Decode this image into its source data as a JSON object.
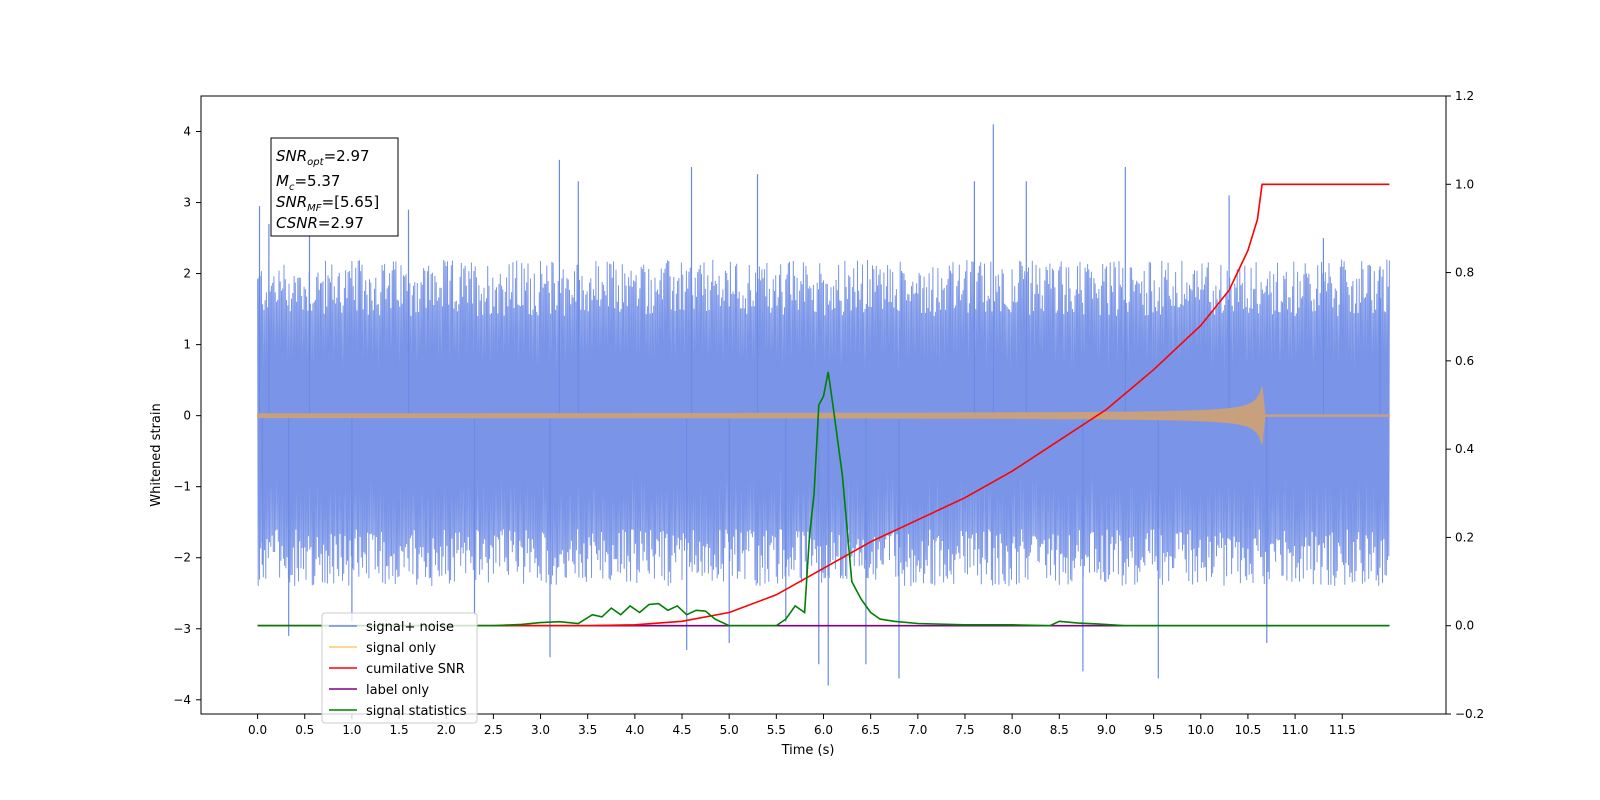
{
  "chart_data": {
    "type": "line",
    "xlabel": "Time (s)",
    "ylabel": "Whitened strain",
    "xlim": [
      -0.6,
      12.6
    ],
    "ylim_left": [
      -4.2,
      4.5
    ],
    "ylim_right": [
      -0.2,
      1.2
    ],
    "x_ticks": [
      0.0,
      0.5,
      1.0,
      1.5,
      2.0,
      2.5,
      3.0,
      3.5,
      4.0,
      4.5,
      5.0,
      5.5,
      6.0,
      6.5,
      7.0,
      7.5,
      8.0,
      8.5,
      9.0,
      9.5,
      10.0,
      10.5,
      11.0,
      11.5
    ],
    "x_tick_labels": [
      "0.0",
      "0.5",
      "1.0",
      "1.5",
      "2.0",
      "2.5",
      "3.0",
      "3.5",
      "4.0",
      "4.5",
      "5.0",
      "5.5",
      "6.0",
      "6.5",
      "7.0",
      "7.5",
      "8.0",
      "8.5",
      "9.0",
      "9.5",
      "10.0",
      "10.5",
      "11.0",
      "11.5"
    ],
    "y_left_ticks": [
      4,
      3,
      2,
      1,
      0,
      -1,
      -2,
      -3,
      -4
    ],
    "y_left_tick_labels": [
      "4",
      "3",
      "2",
      "1",
      "0",
      "−1",
      "−2",
      "−3",
      "−4"
    ],
    "y_right_ticks": [
      1.2,
      1.0,
      0.8,
      0.6,
      0.4,
      0.2,
      0.0,
      -0.2
    ],
    "y_right_tick_labels": [
      "1.2",
      "1.0",
      "0.8",
      "0.6",
      "0.4",
      "0.2",
      "0.0",
      "−0.2"
    ],
    "grid": false,
    "legend_position": "lower-left",
    "annotation": {
      "lines": [
        {
          "name": "SNR",
          "sub": "opt",
          "value": "=2.97"
        },
        {
          "name": "M",
          "sub": "c",
          "value": "=5.37"
        },
        {
          "name": "SNR",
          "sub": "MF",
          "value": "=[5.65]"
        },
        {
          "name": "CSNR",
          "sub": "",
          "value": "=2.97"
        }
      ]
    },
    "series": [
      {
        "name": "signal+ noise",
        "color": "#6b8ae5",
        "axis": "left",
        "style": "noise band",
        "x_range": [
          0.0,
          12.0
        ],
        "typical_range": [
          -1.6,
          1.4
        ],
        "spikes": [
          [
            0.02,
            2.95
          ],
          [
            0.05,
            -2.1
          ],
          [
            0.12,
            2.7
          ],
          [
            0.33,
            -3.1
          ],
          [
            0.55,
            2.7
          ],
          [
            1.0,
            -2.9
          ],
          [
            1.6,
            2.9
          ],
          [
            2.3,
            -2.8
          ],
          [
            3.2,
            3.6
          ],
          [
            3.1,
            -3.4
          ],
          [
            3.4,
            3.3
          ],
          [
            4.55,
            -3.3
          ],
          [
            4.6,
            3.5
          ],
          [
            5.0,
            -3.2
          ],
          [
            5.3,
            3.4
          ],
          [
            5.6,
            -2.9
          ],
          [
            5.95,
            -3.5
          ],
          [
            6.05,
            -3.8
          ],
          [
            6.45,
            -3.5
          ],
          [
            6.8,
            -3.7
          ],
          [
            7.8,
            4.1
          ],
          [
            7.6,
            3.3
          ],
          [
            8.15,
            3.3
          ],
          [
            8.75,
            -3.6
          ],
          [
            9.2,
            3.5
          ],
          [
            9.55,
            -3.7
          ],
          [
            10.3,
            3.1
          ],
          [
            10.7,
            -3.2
          ],
          [
            11.3,
            2.5
          ],
          [
            11.9,
            2.1
          ]
        ]
      },
      {
        "name": "signal only",
        "color": "#ffc96b",
        "axis": "left",
        "style": "chirp",
        "x_range": [
          0.0,
          12.0
        ],
        "chirp_end": 10.65,
        "peak_amplitude": 0.38
      },
      {
        "name": "cumilative SNR",
        "color": "#ff0000",
        "axis": "right",
        "x": [
          0.0,
          3.5,
          4.0,
          4.5,
          5.0,
          5.5,
          6.0,
          6.5,
          7.0,
          7.5,
          8.0,
          8.5,
          9.0,
          9.5,
          10.0,
          10.3,
          10.5,
          10.6,
          10.65,
          12.0
        ],
        "y": [
          0.0,
          0.0,
          0.002,
          0.01,
          0.03,
          0.07,
          0.13,
          0.19,
          0.24,
          0.29,
          0.35,
          0.42,
          0.49,
          0.58,
          0.68,
          0.76,
          0.85,
          0.92,
          1.0,
          1.0
        ]
      },
      {
        "name": "label only",
        "color": "#800080",
        "axis": "right",
        "x": [
          0.0,
          12.0
        ],
        "y": [
          0.0,
          0.0
        ]
      },
      {
        "name": "signal statistics",
        "color": "#008000",
        "axis": "right",
        "x": [
          0.0,
          2.5,
          2.8,
          3.0,
          3.2,
          3.4,
          3.55,
          3.65,
          3.75,
          3.85,
          3.95,
          4.05,
          4.15,
          4.25,
          4.35,
          4.45,
          4.55,
          4.65,
          4.75,
          4.85,
          5.0,
          5.3,
          5.5,
          5.6,
          5.7,
          5.8,
          5.85,
          5.9,
          5.95,
          6.0,
          6.05,
          6.1,
          6.2,
          6.25,
          6.3,
          6.4,
          6.5,
          6.6,
          6.75,
          7.0,
          7.5,
          8.0,
          8.4,
          8.5,
          8.7,
          8.9,
          9.2,
          12.0
        ],
        "y": [
          0.0,
          0.0,
          0.003,
          0.007,
          0.009,
          0.005,
          0.025,
          0.02,
          0.04,
          0.025,
          0.045,
          0.03,
          0.048,
          0.05,
          0.035,
          0.045,
          0.025,
          0.035,
          0.033,
          0.015,
          0.0,
          0.0,
          0.0,
          0.015,
          0.045,
          0.03,
          0.2,
          0.3,
          0.5,
          0.52,
          0.575,
          0.5,
          0.34,
          0.22,
          0.1,
          0.06,
          0.03,
          0.015,
          0.01,
          0.005,
          0.002,
          0.002,
          0.0,
          0.01,
          0.006,
          0.004,
          0.0,
          0.0
        ]
      }
    ]
  }
}
